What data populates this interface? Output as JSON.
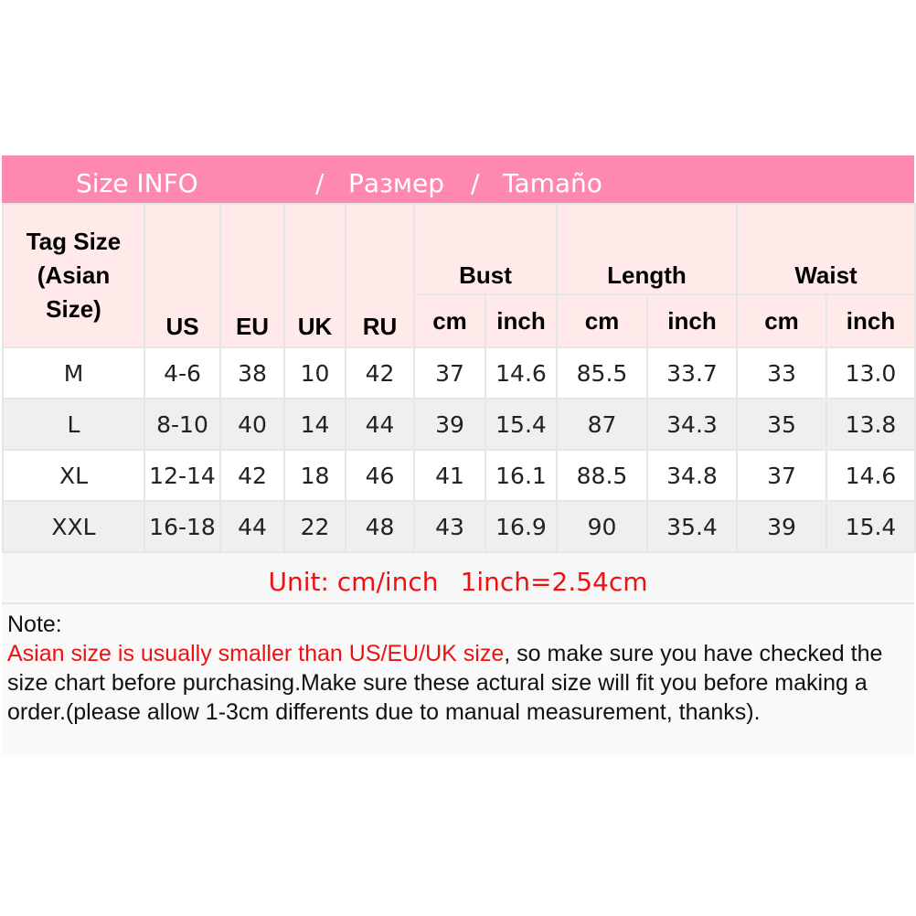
{
  "title": {
    "left": "Size INFO",
    "sep1": "/",
    "ru": "Размер",
    "sep2": "/",
    "es": "Tamaño"
  },
  "colors": {
    "title_bg": "#ff88b0",
    "header_bg": "#ffe9e9",
    "alt_row_bg": "#efefef",
    "accent_red": "#ee1111"
  },
  "header": {
    "tag_size": [
      "Tag Size",
      "(Asian",
      "Size)"
    ],
    "us": "US",
    "eu": "EU",
    "uk": "UK",
    "ru": "RU",
    "bust": "Bust",
    "length": "Length",
    "waist": "Waist",
    "cm": "cm",
    "inch": "inch"
  },
  "rows": [
    [
      "M",
      "4-6",
      "38",
      "10",
      "42",
      "37",
      "14.6",
      "85.5",
      "33.7",
      "33",
      "13.0"
    ],
    [
      "L",
      "8-10",
      "40",
      "14",
      "44",
      "39",
      "15.4",
      "87",
      "34.3",
      "35",
      "13.8"
    ],
    [
      "XL",
      "12-14",
      "42",
      "18",
      "46",
      "41",
      "16.1",
      "88.5",
      "34.8",
      "37",
      "14.6"
    ],
    [
      "XXL",
      "16-18",
      "44",
      "22",
      "48",
      "43",
      "16.9",
      "90",
      "35.4",
      "39",
      "15.4"
    ]
  ],
  "unit": {
    "a": "Unit: cm/inch",
    "b": "1inch=2.54cm"
  },
  "note": {
    "label": "Note:",
    "red": "Asian size is usually smaller than US/EU/UK size",
    "rest": ", so make sure you have checked the size chart before purchasing.Make sure these actural size will fit you before making a order.(please allow 1-3cm differents due to manual measurement, thanks)."
  }
}
